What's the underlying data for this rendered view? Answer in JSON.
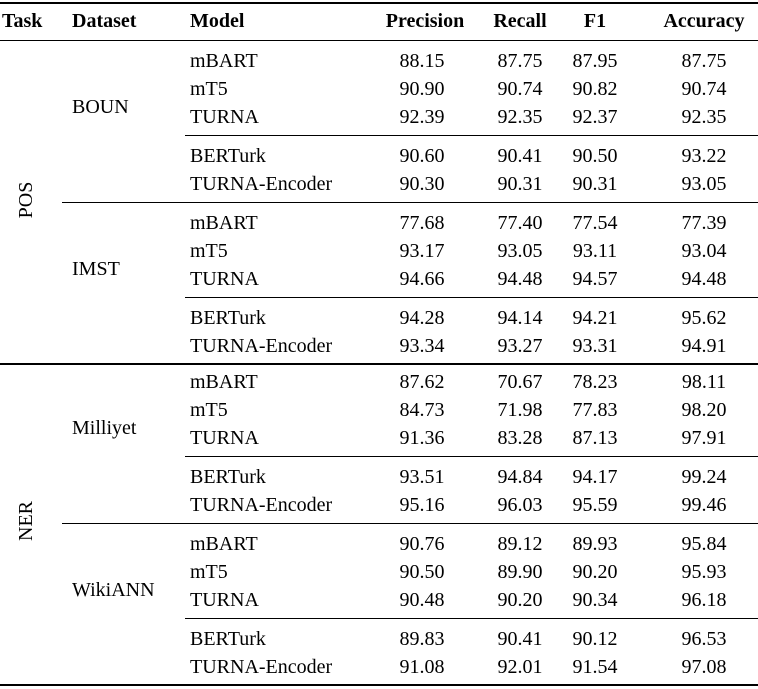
{
  "header": {
    "task": "Task",
    "dataset": "Dataset",
    "model": "Model",
    "precision": "Precision",
    "recall": "Recall",
    "f1": "F1",
    "accuracy": "Accuracy"
  },
  "tasks": [
    {
      "name": "POS",
      "datasets": [
        {
          "name": "BOUN",
          "groups": [
            [
              {
                "model": "mBART",
                "precision": "88.15",
                "recall": "87.75",
                "f1": "87.95",
                "accuracy": "87.75"
              },
              {
                "model": "mT5",
                "precision": "90.90",
                "recall": "90.74",
                "f1": "90.82",
                "accuracy": "90.74"
              },
              {
                "model": "TURNA",
                "precision": "92.39",
                "recall": "92.35",
                "f1": "92.37",
                "accuracy": "92.35"
              }
            ],
            [
              {
                "model": "BERTurk",
                "precision": "90.60",
                "recall": "90.41",
                "f1": "90.50",
                "accuracy": "93.22"
              },
              {
                "model": "TURNA-Encoder",
                "precision": "90.30",
                "recall": "90.31",
                "f1": "90.31",
                "accuracy": "93.05"
              }
            ]
          ]
        },
        {
          "name": "IMST",
          "groups": [
            [
              {
                "model": "mBART",
                "precision": "77.68",
                "recall": "77.40",
                "f1": "77.54",
                "accuracy": "77.39"
              },
              {
                "model": "mT5",
                "precision": "93.17",
                "recall": "93.05",
                "f1": "93.11",
                "accuracy": "93.04"
              },
              {
                "model": "TURNA",
                "precision": "94.66",
                "recall": "94.48",
                "f1": "94.57",
                "accuracy": "94.48"
              }
            ],
            [
              {
                "model": "BERTurk",
                "precision": "94.28",
                "recall": "94.14",
                "f1": "94.21",
                "accuracy": "95.62"
              },
              {
                "model": "TURNA-Encoder",
                "precision": "93.34",
                "recall": "93.27",
                "f1": "93.31",
                "accuracy": "94.91"
              }
            ]
          ]
        }
      ]
    },
    {
      "name": "NER",
      "datasets": [
        {
          "name": "Milliyet",
          "groups": [
            [
              {
                "model": "mBART",
                "precision": "87.62",
                "recall": "70.67",
                "f1": "78.23",
                "accuracy": "98.11"
              },
              {
                "model": "mT5",
                "precision": "84.73",
                "recall": "71.98",
                "f1": "77.83",
                "accuracy": "98.20"
              },
              {
                "model": "TURNA",
                "precision": "91.36",
                "recall": "83.28",
                "f1": "87.13",
                "accuracy": "97.91"
              }
            ],
            [
              {
                "model": "BERTurk",
                "precision": "93.51",
                "recall": "94.84",
                "f1": "94.17",
                "accuracy": "99.24"
              },
              {
                "model": "TURNA-Encoder",
                "precision": "95.16",
                "recall": "96.03",
                "f1": "95.59",
                "accuracy": "99.46"
              }
            ]
          ]
        },
        {
          "name": "WikiANN",
          "groups": [
            [
              {
                "model": "mBART",
                "precision": "90.76",
                "recall": "89.12",
                "f1": "89.93",
                "accuracy": "95.84"
              },
              {
                "model": "mT5",
                "precision": "90.50",
                "recall": "89.90",
                "f1": "90.20",
                "accuracy": "95.93"
              },
              {
                "model": "TURNA",
                "precision": "90.48",
                "recall": "90.20",
                "f1": "90.34",
                "accuracy": "96.18"
              }
            ],
            [
              {
                "model": "BERTurk",
                "precision": "89.83",
                "recall": "90.41",
                "f1": "90.12",
                "accuracy": "96.53"
              },
              {
                "model": "TURNA-Encoder",
                "precision": "91.08",
                "recall": "92.01",
                "f1": "91.54",
                "accuracy": "97.08"
              }
            ]
          ]
        }
      ]
    }
  ]
}
